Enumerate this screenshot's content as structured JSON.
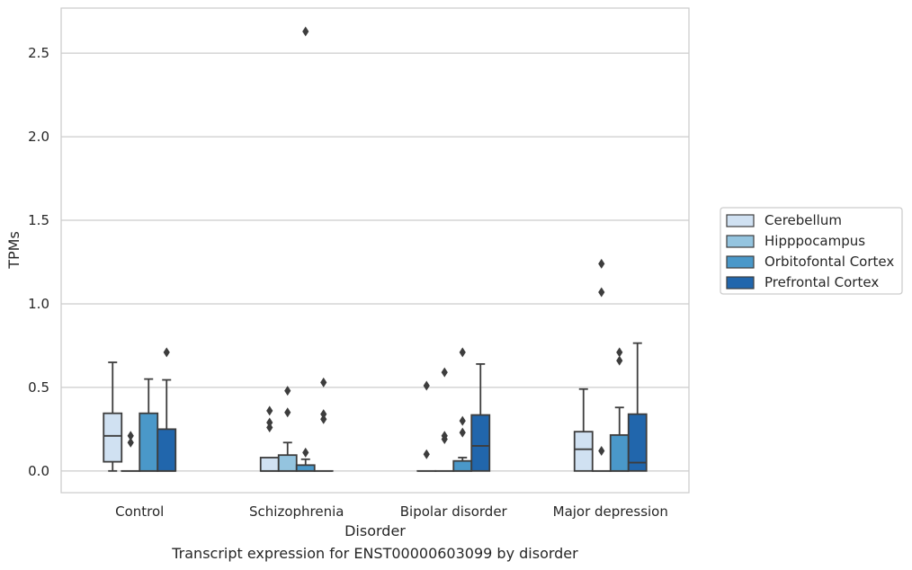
{
  "caption": "Transcript expression for ENST00000603099 by disorder",
  "chart_data": {
    "type": "box",
    "xlabel": "Disorder",
    "ylabel": "TPMs",
    "ylim": [
      -0.13,
      2.77
    ],
    "yticks": [
      0.0,
      0.5,
      1.0,
      1.5,
      2.0,
      2.5
    ],
    "ytick_labels": [
      "0.0",
      "0.5",
      "1.0",
      "1.5",
      "2.0",
      "2.5"
    ],
    "grid": "horizontal",
    "legend_position": "outside-right",
    "categories": [
      "Control",
      "Schizophrenia",
      "Bipolar disorder",
      "Major depression"
    ],
    "series": [
      {
        "name": "Cerebellum",
        "color": "#d0e1f2",
        "boxes": [
          {
            "whislo": 0.0,
            "q1": 0.055,
            "med": 0.21,
            "q3": 0.345,
            "whishi": 0.65,
            "fliers": []
          },
          {
            "whislo": 0.0,
            "q1": 0.0,
            "med": 0.0,
            "q3": 0.08,
            "whishi": 0.08,
            "fliers": [
              0.26,
              0.29,
              0.36
            ]
          },
          {
            "whislo": 0.0,
            "q1": 0.0,
            "med": 0.0,
            "q3": 0.0,
            "whishi": 0.0,
            "fliers": [
              0.1,
              0.51
            ]
          },
          {
            "whislo": 0.0,
            "q1": 0.0,
            "med": 0.13,
            "q3": 0.235,
            "whishi": 0.49,
            "fliers": []
          }
        ]
      },
      {
        "name": "Hipppocampus",
        "color": "#94c4df",
        "boxes": [
          {
            "whislo": 0.0,
            "q1": 0.0,
            "med": 0.0,
            "q3": 0.0,
            "whishi": 0.0,
            "fliers": [
              0.17,
              0.21
            ]
          },
          {
            "whislo": 0.0,
            "q1": 0.0,
            "med": 0.0,
            "q3": 0.095,
            "whishi": 0.17,
            "fliers": [
              0.35,
              0.48
            ]
          },
          {
            "whislo": 0.0,
            "q1": 0.0,
            "med": 0.0,
            "q3": 0.0,
            "whishi": 0.0,
            "fliers": [
              0.19,
              0.21,
              0.59
            ]
          },
          {
            "whislo": 0.0,
            "q1": 0.0,
            "med": 0.0,
            "q3": 0.0,
            "whishi": 0.0,
            "fliers": [
              0.12,
              1.07,
              1.24
            ]
          }
        ]
      },
      {
        "name": "Orbitofontal Cortex",
        "color": "#4a98c9",
        "boxes": [
          {
            "whislo": 0.0,
            "q1": 0.0,
            "med": 0.0,
            "q3": 0.345,
            "whishi": 0.55,
            "fliers": []
          },
          {
            "whislo": 0.0,
            "q1": 0.0,
            "med": 0.0,
            "q3": 0.035,
            "whishi": 0.07,
            "fliers": [
              0.11,
              2.63
            ]
          },
          {
            "whislo": 0.0,
            "q1": 0.0,
            "med": 0.0,
            "q3": 0.06,
            "whishi": 0.08,
            "fliers": [
              0.23,
              0.3,
              0.71
            ]
          },
          {
            "whislo": 0.0,
            "q1": 0.0,
            "med": 0.0,
            "q3": 0.215,
            "whishi": 0.38,
            "fliers": [
              0.66,
              0.71
            ]
          }
        ]
      },
      {
        "name": "Prefrontal Cortex",
        "color": "#2166ac",
        "boxes": [
          {
            "whislo": 0.0,
            "q1": 0.0,
            "med": 0.0,
            "q3": 0.25,
            "whishi": 0.545,
            "fliers": [
              0.71
            ]
          },
          {
            "whislo": 0.0,
            "q1": 0.0,
            "med": 0.0,
            "q3": 0.0,
            "whishi": 0.0,
            "fliers": [
              0.31,
              0.34,
              0.53
            ]
          },
          {
            "whislo": 0.0,
            "q1": 0.0,
            "med": 0.15,
            "q3": 0.335,
            "whishi": 0.64,
            "fliers": []
          },
          {
            "whislo": 0.0,
            "q1": 0.0,
            "med": 0.05,
            "q3": 0.34,
            "whishi": 0.765,
            "fliers": []
          }
        ]
      }
    ]
  }
}
